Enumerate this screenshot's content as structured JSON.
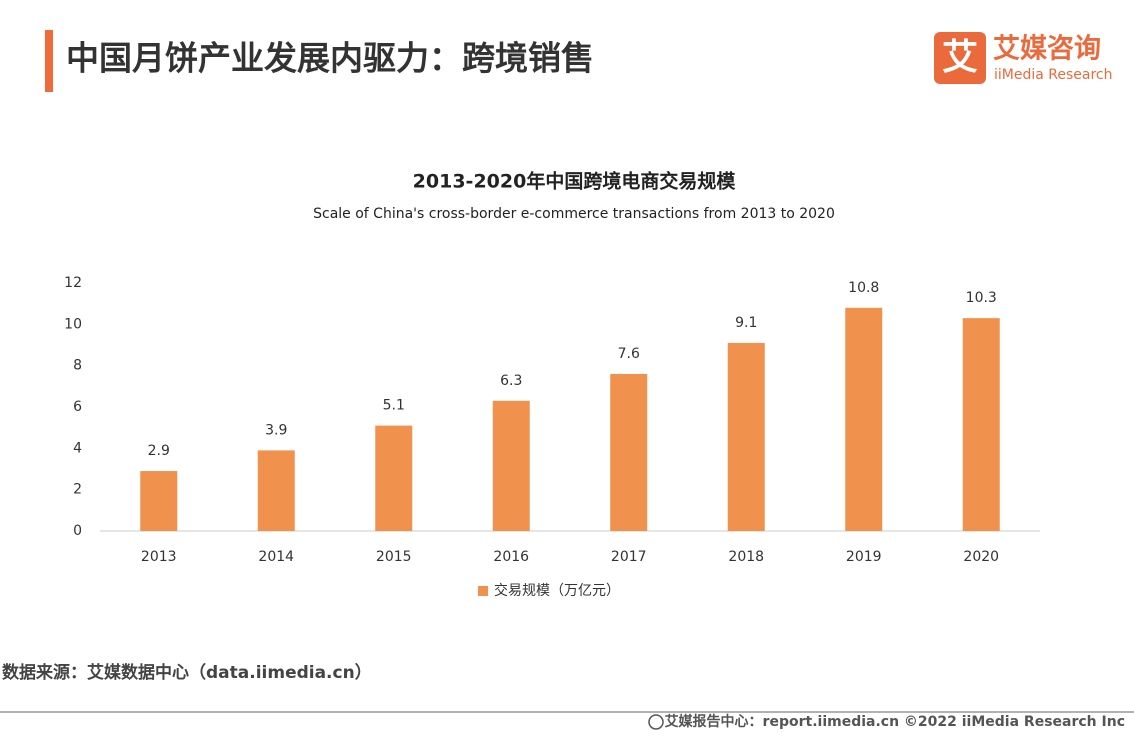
{
  "header": {
    "title": "中国月饼产业发展内驱力：跨境销售",
    "logo_cn": "艾媒咨询",
    "logo_en": "iiMedia Research",
    "logo_icon": "艾"
  },
  "chart_data": {
    "type": "bar",
    "title": "2013-2020年中国跨境电商交易规模",
    "subtitle": "Scale of China's cross-border e-commerce transactions from 2013 to 2020",
    "categories": [
      "2013",
      "2014",
      "2015",
      "2016",
      "2017",
      "2018",
      "2019",
      "2020"
    ],
    "series": [
      {
        "name": "交易规模（万亿元）",
        "color": "#f0914e",
        "values": [
          2.9,
          3.9,
          5.1,
          6.3,
          7.6,
          9.1,
          10.8,
          10.3
        ]
      }
    ],
    "ylim": [
      0,
      12
    ],
    "yticks": [
      0,
      2,
      4,
      6,
      8,
      10,
      12
    ],
    "grid": false,
    "legend": "bottom"
  },
  "source": "数据来源：艾媒数据中心（data.iimedia.cn）",
  "footer": "艾媒报告中心：report.iimedia.cn  ©2022  iiMedia Research  Inc"
}
